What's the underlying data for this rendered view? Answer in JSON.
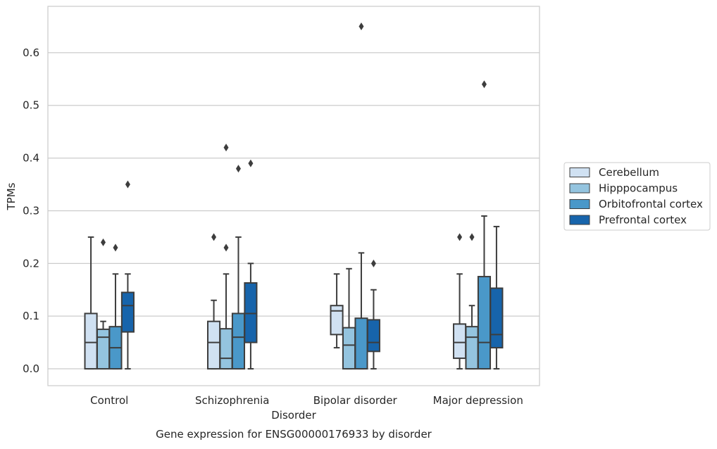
{
  "chart_data": {
    "type": "boxplot",
    "title": "",
    "caption": "Gene expression for ENSG00000176933 by disorder",
    "xlabel": "Disorder",
    "ylabel": "TPMs",
    "ylim": [
      -0.032,
      0.688
    ],
    "y_ticks": [
      0.0,
      0.1,
      0.2,
      0.3,
      0.4,
      0.5,
      0.6
    ],
    "y_tick_labels": [
      "0.0",
      "0.1",
      "0.2",
      "0.3",
      "0.4",
      "0.5",
      "0.6"
    ],
    "grid": "horizontal",
    "legend_position": "right",
    "categories": [
      "Control",
      "Schizophrenia",
      "Bipolar disorder",
      "Major depression"
    ],
    "series": [
      {
        "name": "Cerebellum",
        "color": "#d0e1f2",
        "boxes": [
          {
            "whislo": 0.0,
            "q1": 0.0,
            "med": 0.05,
            "q3": 0.105,
            "whishi": 0.25,
            "fliers": []
          },
          {
            "whislo": 0.0,
            "q1": 0.0,
            "med": 0.05,
            "q3": 0.09,
            "whishi": 0.13,
            "fliers": [
              0.25
            ]
          },
          {
            "whislo": 0.04,
            "q1": 0.065,
            "med": 0.11,
            "q3": 0.12,
            "whishi": 0.18,
            "fliers": []
          },
          {
            "whislo": 0.0,
            "q1": 0.02,
            "med": 0.05,
            "q3": 0.085,
            "whishi": 0.18,
            "fliers": [
              0.25
            ]
          }
        ]
      },
      {
        "name": "Hipppocampus",
        "color": "#94c4df",
        "boxes": [
          {
            "whislo": 0.0,
            "q1": 0.0,
            "med": 0.06,
            "q3": 0.075,
            "whishi": 0.09,
            "fliers": [
              0.24
            ]
          },
          {
            "whislo": 0.0,
            "q1": 0.0,
            "med": 0.02,
            "q3": 0.076,
            "whishi": 0.18,
            "fliers": [
              0.23,
              0.42
            ]
          },
          {
            "whislo": 0.0,
            "q1": 0.0,
            "med": 0.045,
            "q3": 0.078,
            "whishi": 0.19,
            "fliers": []
          },
          {
            "whislo": 0.0,
            "q1": 0.0,
            "med": 0.06,
            "q3": 0.08,
            "whishi": 0.12,
            "fliers": [
              0.25
            ]
          }
        ]
      },
      {
        "name": "Orbitofrontal cortex",
        "color": "#4a98c9",
        "boxes": [
          {
            "whislo": 0.0,
            "q1": 0.0,
            "med": 0.04,
            "q3": 0.08,
            "whishi": 0.18,
            "fliers": [
              0.23
            ]
          },
          {
            "whislo": 0.0,
            "q1": 0.0,
            "med": 0.06,
            "q3": 0.105,
            "whishi": 0.25,
            "fliers": [
              0.38
            ]
          },
          {
            "whislo": 0.0,
            "q1": 0.0,
            "med": 0.0,
            "q3": 0.096,
            "whishi": 0.22,
            "fliers": [
              0.65
            ]
          },
          {
            "whislo": 0.0,
            "q1": 0.0,
            "med": 0.05,
            "q3": 0.175,
            "whishi": 0.29,
            "fliers": [
              0.54
            ]
          }
        ]
      },
      {
        "name": "Prefrontal cortex",
        "color": "#1764ab",
        "boxes": [
          {
            "whislo": 0.0,
            "q1": 0.07,
            "med": 0.12,
            "q3": 0.145,
            "whishi": 0.18,
            "fliers": [
              0.35
            ]
          },
          {
            "whislo": 0.0,
            "q1": 0.05,
            "med": 0.105,
            "q3": 0.163,
            "whishi": 0.2,
            "fliers": [
              0.39
            ]
          },
          {
            "whislo": 0.0,
            "q1": 0.033,
            "med": 0.05,
            "q3": 0.093,
            "whishi": 0.15,
            "fliers": [
              0.2
            ]
          },
          {
            "whislo": 0.0,
            "q1": 0.04,
            "med": 0.065,
            "q3": 0.153,
            "whishi": 0.27,
            "fliers": []
          }
        ]
      }
    ]
  }
}
